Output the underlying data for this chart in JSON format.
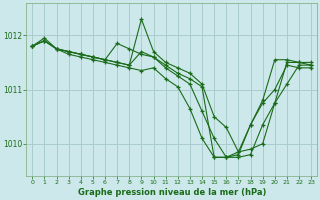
{
  "title": "Graphe pression niveau de la mer (hPa)",
  "bg_color": "#cce8ea",
  "grid_color": "#aacccc",
  "line_color": "#1a6b1a",
  "xlim": [
    -0.5,
    23.5
  ],
  "ylim": [
    1009.4,
    1012.6
  ],
  "yticks": [
    1010,
    1011,
    1012
  ],
  "xticks": [
    0,
    1,
    2,
    3,
    4,
    5,
    6,
    7,
    8,
    9,
    10,
    11,
    12,
    13,
    14,
    15,
    16,
    17,
    18,
    19,
    20,
    21,
    22,
    23
  ],
  "series": [
    {
      "x": [
        0,
        1,
        2,
        3,
        4,
        5,
        6,
        7,
        8,
        9,
        10,
        11,
        12,
        13,
        14,
        15,
        16,
        17,
        18,
        19,
        20,
        21,
        22,
        23
      ],
      "y": [
        1011.8,
        1011.95,
        1011.75,
        1011.7,
        1011.65,
        1011.6,
        1011.55,
        1011.5,
        1011.45,
        1012.3,
        1011.7,
        1011.5,
        1011.4,
        1011.3,
        1011.1,
        1010.5,
        1010.3,
        1009.85,
        1009.9,
        1010.0,
        1010.75,
        1011.5,
        1011.5,
        1011.45
      ]
    },
    {
      "x": [
        0,
        1,
        2,
        3,
        4,
        5,
        6,
        7,
        8,
        9,
        10,
        11,
        12,
        13,
        14,
        15,
        16,
        17,
        18,
        19,
        20,
        21,
        22,
        23
      ],
      "y": [
        1011.8,
        1011.9,
        1011.75,
        1011.7,
        1011.65,
        1011.6,
        1011.55,
        1011.5,
        1011.45,
        1011.7,
        1011.6,
        1011.4,
        1011.25,
        1011.1,
        1010.6,
        1010.1,
        1009.75,
        1009.75,
        1009.8,
        1010.35,
        1010.75,
        1011.1,
        1011.45,
        1011.45
      ]
    },
    {
      "x": [
        0,
        1,
        2,
        3,
        4,
        5,
        6,
        7,
        8,
        9,
        10,
        11,
        12,
        13,
        14,
        15,
        16,
        17,
        18,
        19,
        20,
        21,
        22,
        23
      ],
      "y": [
        1011.8,
        1011.9,
        1011.75,
        1011.7,
        1011.65,
        1011.6,
        1011.55,
        1011.85,
        1011.75,
        1011.65,
        1011.6,
        1011.45,
        1011.3,
        1011.2,
        1011.05,
        1009.75,
        1009.75,
        1009.85,
        1010.35,
        1010.8,
        1011.55,
        1011.55,
        1011.5,
        1011.5
      ]
    },
    {
      "x": [
        0,
        1,
        2,
        3,
        4,
        5,
        6,
        7,
        8,
        9,
        10,
        11,
        12,
        13,
        14,
        15,
        16,
        17,
        18,
        19,
        20,
        21,
        22,
        23
      ],
      "y": [
        1011.8,
        1011.9,
        1011.75,
        1011.65,
        1011.6,
        1011.55,
        1011.5,
        1011.45,
        1011.4,
        1011.35,
        1011.4,
        1011.2,
        1011.05,
        1010.65,
        1010.1,
        1009.75,
        1009.75,
        1009.8,
        1010.35,
        1010.75,
        1011.0,
        1011.45,
        1011.4,
        1011.4
      ]
    }
  ]
}
